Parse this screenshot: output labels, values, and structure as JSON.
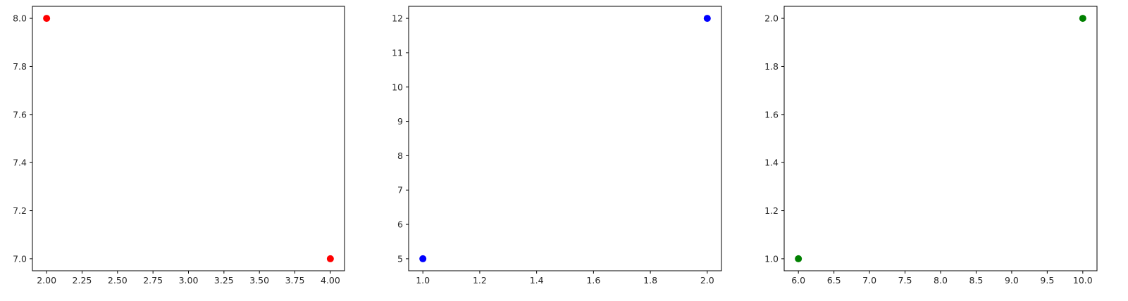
{
  "chart_data": [
    {
      "type": "scatter",
      "x": [
        2,
        4
      ],
      "y": [
        8,
        7
      ],
      "color": "#ff0000",
      "xlim": [
        1.9,
        4.1
      ],
      "ylim": [
        6.95,
        8.05
      ],
      "xticks": [
        "2.00",
        "2.25",
        "2.50",
        "2.75",
        "3.00",
        "3.25",
        "3.50",
        "3.75",
        "4.00"
      ],
      "yticks": [
        "7.0",
        "7.2",
        "7.4",
        "7.6",
        "7.8",
        "8.0"
      ],
      "grid": false
    },
    {
      "type": "scatter",
      "x": [
        1,
        2
      ],
      "y": [
        5,
        12
      ],
      "color": "#0000ff",
      "xlim": [
        0.95,
        2.05
      ],
      "ylim": [
        4.65,
        12.35
      ],
      "xticks": [
        "1.0",
        "1.2",
        "1.4",
        "1.6",
        "1.8",
        "2.0"
      ],
      "yticks": [
        "5",
        "6",
        "7",
        "8",
        "9",
        "10",
        "11",
        "12"
      ],
      "grid": false
    },
    {
      "type": "scatter",
      "x": [
        6,
        10
      ],
      "y": [
        1,
        2
      ],
      "color": "#008000",
      "xlim": [
        5.8,
        10.2
      ],
      "ylim": [
        0.95,
        2.05
      ],
      "xticks": [
        "6.0",
        "6.5",
        "7.0",
        "7.5",
        "8.0",
        "8.5",
        "9.0",
        "9.5",
        "10.0"
      ],
      "yticks": [
        "1.0",
        "1.2",
        "1.4",
        "1.6",
        "1.8",
        "2.0"
      ],
      "grid": false
    }
  ]
}
